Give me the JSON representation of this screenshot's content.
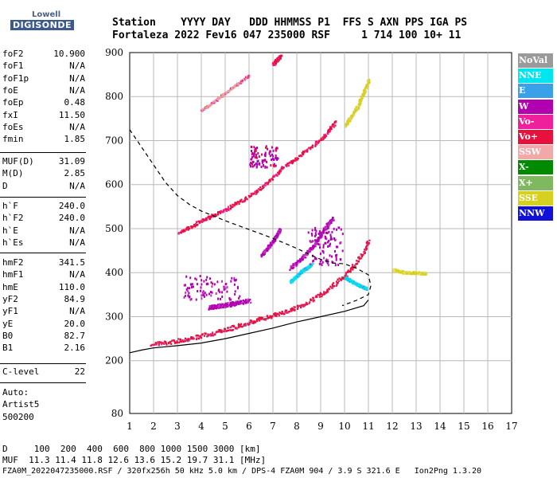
{
  "logo": {
    "top": "Lowell",
    "bottom": "DIGISONDE"
  },
  "header": {
    "row1": "Station    YYYY DAY   DDD HHMMSS P1  FFS S AXN PPS IGA PS",
    "row2": "Fortaleza 2022 Fev16 047 235000 RSF     1 714 100 10+ 11"
  },
  "params": {
    "group1": [
      {
        "label": "foF2",
        "value": "10.900"
      },
      {
        "label": "foF1",
        "value": "N/A"
      },
      {
        "label": "foF1p",
        "value": "N/A"
      },
      {
        "label": "foE",
        "value": "N/A"
      },
      {
        "label": "foEp",
        "value": "0.48"
      },
      {
        "label": "fxI",
        "value": "11.50"
      },
      {
        "label": "foEs",
        "value": "N/A"
      },
      {
        "label": "fmin",
        "value": "1.85"
      }
    ],
    "group2": [
      {
        "label": "MUF(D)",
        "value": "31.09"
      },
      {
        "label": "M(D)",
        "value": "2.85"
      },
      {
        "label": "D",
        "value": "N/A"
      }
    ],
    "group3": [
      {
        "label": "h`F",
        "value": "240.0"
      },
      {
        "label": "h`F2",
        "value": "240.0"
      },
      {
        "label": "h`E",
        "value": "N/A"
      },
      {
        "label": "h`Es",
        "value": "N/A"
      }
    ],
    "group4": [
      {
        "label": "hmF2",
        "value": "341.5"
      },
      {
        "label": "hmF1",
        "value": "N/A"
      },
      {
        "label": "hmE",
        "value": "110.0"
      },
      {
        "label": "yF2",
        "value": "84.9"
      },
      {
        "label": "yF1",
        "value": "N/A"
      },
      {
        "label": "yE",
        "value": "20.0"
      },
      {
        "label": "B0",
        "value": "82.7"
      },
      {
        "label": "B1",
        "value": "2.16"
      }
    ],
    "clevel": {
      "label": "C-level",
      "value": "22"
    },
    "auto": [
      "Auto:",
      "Artist5",
      "500200"
    ]
  },
  "footer": {
    "line1": "D     100  200  400  600  800 1000 1500 3000 [km]",
    "line2": "MUF  11.3 11.4 11.8 12.6 13.6 15.2 19.7 31.1 [MHz]",
    "line3": "FZA0M_2022047235000.RSF / 320fx256h 50 kHz 5.0 km / DPS-4 FZA0M 904 / 3.9 S 321.6 E   Ion2Png 1.3.20"
  },
  "legend": [
    {
      "label": "NoVal",
      "color": "#9a9a9a"
    },
    {
      "label": "NNE",
      "color": "#00e5ee"
    },
    {
      "label": "E",
      "color": "#3aa0e8"
    },
    {
      "label": "W",
      "color": "#b000b0"
    },
    {
      "label": "Vo-",
      "color": "#f0209c"
    },
    {
      "label": "Vo+",
      "color": "#e8103c"
    },
    {
      "label": "SSW",
      "color": "#f0a8a8"
    },
    {
      "label": "X-",
      "color": "#008a00"
    },
    {
      "label": "X+",
      "color": "#80b860"
    },
    {
      "label": "SSE",
      "color": "#d8d020"
    },
    {
      "label": "NNW",
      "color": "#1010d8"
    }
  ],
  "chart_data": {
    "type": "scatter",
    "xlim": [
      1,
      17
    ],
    "ylim": [
      80,
      900
    ],
    "xticks": [
      "1",
      "2",
      "3",
      "4",
      "5",
      "6",
      "7",
      "8",
      "9",
      "10",
      "11",
      "12",
      "13",
      "14",
      "15",
      "16",
      "17"
    ],
    "yticks": [
      {
        "value": 80,
        "label": "80"
      },
      {
        "value": 200,
        "label": "200"
      },
      {
        "value": 300,
        "label": "300"
      },
      {
        "value": 400,
        "label": "400"
      },
      {
        "value": 500,
        "label": "500"
      },
      {
        "value": 600,
        "label": "600"
      },
      {
        "value": 700,
        "label": "700"
      },
      {
        "value": 800,
        "label": "800"
      },
      {
        "value": 900,
        "label": "900"
      }
    ],
    "grid": true,
    "series": [
      {
        "mode": "band",
        "color": "#e8103c",
        "alt": "#d03080",
        "thick": 5,
        "points": [
          [
            1.9,
            240
          ],
          [
            2.5,
            242
          ],
          [
            3,
            247
          ],
          [
            3.5,
            252
          ],
          [
            4,
            258
          ],
          [
            4.5,
            264
          ],
          [
            5,
            272
          ],
          [
            5.5,
            280
          ],
          [
            6,
            288
          ],
          [
            6.5,
            297
          ],
          [
            7,
            305
          ],
          [
            7.5,
            313
          ],
          [
            8,
            322
          ],
          [
            8.5,
            336
          ],
          [
            9,
            352
          ],
          [
            9.5,
            372
          ],
          [
            10,
            395
          ],
          [
            10.4,
            420
          ],
          [
            10.8,
            450
          ],
          [
            11,
            475
          ]
        ]
      },
      {
        "mode": "band",
        "color": "#e8103c",
        "alt": "#f0209c",
        "thick": 4,
        "points": [
          [
            3,
            490
          ],
          [
            3.5,
            505
          ],
          [
            4,
            520
          ],
          [
            4.5,
            532
          ],
          [
            5,
            545
          ],
          [
            5.5,
            560
          ],
          [
            6,
            575
          ],
          [
            6.5,
            595
          ],
          [
            7,
            620
          ],
          [
            7.5,
            645
          ],
          [
            8,
            662
          ],
          [
            8.5,
            685
          ],
          [
            9,
            705
          ],
          [
            9.3,
            722
          ],
          [
            9.6,
            745
          ]
        ]
      },
      {
        "mode": "band",
        "color": "#e8103c",
        "alt": "#f0209c",
        "thick": 3,
        "points": [
          [
            7,
            875
          ],
          [
            7.3,
            895
          ]
        ]
      },
      {
        "mode": "band",
        "color": "#e8a0a0",
        "alt": "#f0209c",
        "thick": 2,
        "points": [
          [
            4,
            770
          ],
          [
            5,
            810
          ],
          [
            6,
            850
          ]
        ]
      },
      {
        "mode": "band",
        "color": "#d8d020",
        "alt": "#e0d860",
        "thick": 4,
        "points": [
          [
            10,
            735
          ],
          [
            10.5,
            775
          ],
          [
            11,
            840
          ]
        ]
      },
      {
        "mode": "band",
        "color": "#d8d020",
        "alt": "#e8e060",
        "thick": 3,
        "points": [
          [
            12,
            408
          ],
          [
            12.5,
            402
          ],
          [
            13.4,
            400
          ]
        ]
      },
      {
        "mode": "band",
        "color": "#b000b0",
        "alt": "#c030c0",
        "thick": 5,
        "points": [
          [
            4.3,
            322
          ],
          [
            5,
            328
          ],
          [
            6,
            338
          ]
        ]
      },
      {
        "mode": "band",
        "color": "#b000b0",
        "alt": "#c030c0",
        "thick": 4,
        "points": [
          [
            7.7,
            410
          ],
          [
            8.3,
            440
          ],
          [
            8.8,
            470
          ],
          [
            9.2,
            505
          ],
          [
            9.5,
            525
          ]
        ]
      },
      {
        "mode": "band",
        "color": "#b000b0",
        "alt": "#c030c0",
        "thick": 3,
        "points": [
          [
            6.5,
            440
          ],
          [
            7,
            475
          ],
          [
            7.3,
            500
          ]
        ]
      },
      {
        "mode": "band",
        "color": "#00e5ee",
        "alt": "#3aa0e8",
        "thick": 3,
        "points": [
          [
            7.7,
            380
          ],
          [
            8.2,
            405
          ],
          [
            8.6,
            420
          ]
        ]
      },
      {
        "mode": "band",
        "color": "#00e5ee",
        "alt": "#3aa0e8",
        "thick": 3,
        "points": [
          [
            10,
            390
          ],
          [
            10.5,
            375
          ],
          [
            10.9,
            365
          ]
        ]
      },
      {
        "mode": "cluster",
        "color": "#b000b0",
        "alt": "#c030c0",
        "xr": [
          3.2,
          5.6
        ],
        "yr": [
          340,
          395
        ]
      },
      {
        "mode": "cluster",
        "color": "#b000b0",
        "alt": "#c030c0",
        "xr": [
          8.4,
          9.9
        ],
        "yr": [
          420,
          505
        ]
      },
      {
        "mode": "cluster",
        "color": "#b000b0",
        "alt": "#e8103c",
        "xr": [
          6,
          7.2
        ],
        "yr": [
          640,
          690
        ]
      }
    ],
    "traces": [
      {
        "name": "",
        "style": "dashed",
        "points": [
          [
            1,
            725
          ],
          [
            1.5,
            685
          ],
          [
            2,
            645
          ],
          [
            2.5,
            605
          ],
          [
            3,
            575
          ],
          [
            3.5,
            555
          ],
          [
            4,
            540
          ],
          [
            5,
            518
          ],
          [
            6,
            498
          ],
          [
            7,
            478
          ],
          [
            8,
            455
          ],
          [
            8.5,
            442
          ],
          [
            9,
            430
          ],
          [
            9.5,
            422
          ],
          [
            10,
            420
          ],
          [
            10.5,
            410
          ],
          [
            11,
            395
          ],
          [
            11.1,
            370
          ],
          [
            11,
            350
          ],
          [
            10.5,
            337
          ],
          [
            9.9,
            325
          ]
        ]
      },
      {
        "name": "",
        "style": "solid",
        "points": [
          [
            1,
            218
          ],
          [
            1.5,
            224
          ],
          [
            2,
            229
          ],
          [
            3,
            234
          ],
          [
            4,
            240
          ],
          [
            5,
            250
          ],
          [
            6,
            262
          ],
          [
            7,
            274
          ],
          [
            8,
            288
          ],
          [
            9,
            300
          ],
          [
            10,
            312
          ],
          [
            10.8,
            325
          ],
          [
            11,
            338
          ]
        ]
      }
    ]
  }
}
